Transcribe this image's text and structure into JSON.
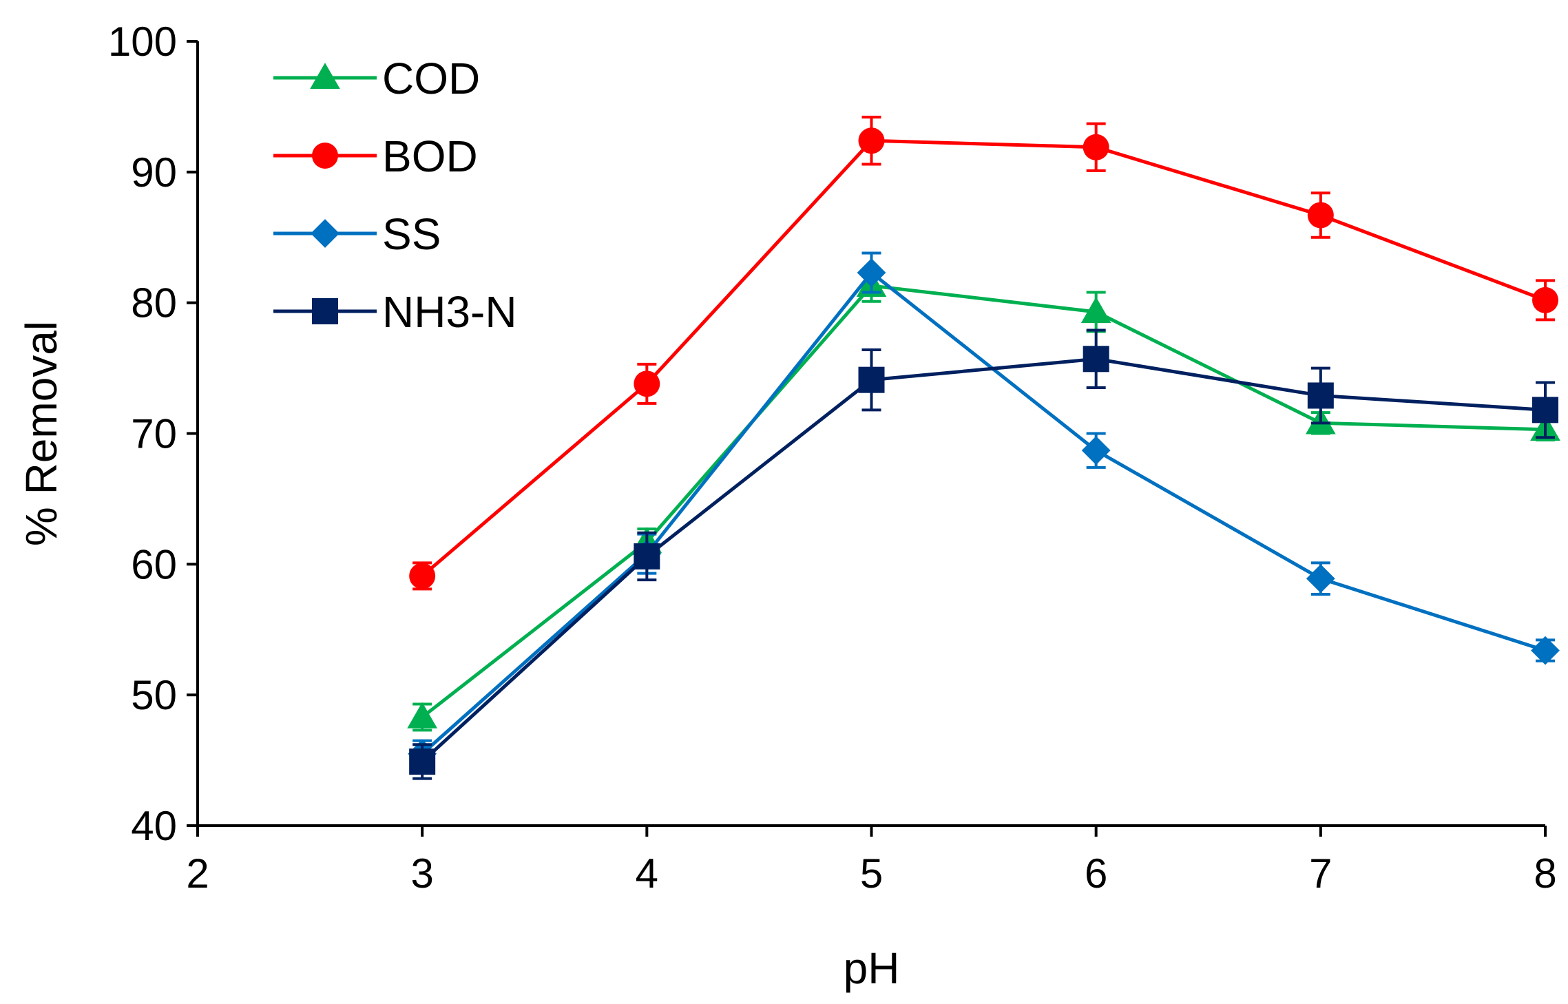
{
  "chart_data": {
    "type": "line",
    "title": "",
    "xlabel": "pH",
    "ylabel": "% Removal",
    "xlim": [
      2,
      8
    ],
    "ylim": [
      40,
      100
    ],
    "x_ticks": [
      "2",
      "3",
      "4",
      "5",
      "6",
      "7",
      "8"
    ],
    "y_ticks": [
      "40",
      "50",
      "60",
      "70",
      "80",
      "90",
      "100"
    ],
    "grid": false,
    "legend_position": "top-left",
    "x": [
      3,
      4,
      5,
      6,
      7,
      8
    ],
    "series": [
      {
        "name": "COD",
        "color": "#00b050",
        "marker": "triangle",
        "values": [
          48.3,
          61.7,
          81.3,
          79.3,
          70.8,
          70.3
        ],
        "errors": [
          1.0,
          1.0,
          1.2,
          1.5,
          0.8,
          0.8
        ]
      },
      {
        "name": "BOD",
        "color": "#ff0000",
        "marker": "circle",
        "values": [
          59.1,
          73.8,
          92.4,
          91.9,
          86.7,
          80.2
        ],
        "errors": [
          1.0,
          1.5,
          1.8,
          1.8,
          1.7,
          1.5
        ]
      },
      {
        "name": "SS",
        "color": "#0070c0",
        "marker": "diamond",
        "values": [
          45.5,
          60.8,
          82.3,
          68.7,
          58.9,
          53.4
        ],
        "errors": [
          1.0,
          1.5,
          1.5,
          1.3,
          1.2,
          0.8
        ]
      },
      {
        "name": "NH3-N",
        "color": "#002060",
        "marker": "square",
        "values": [
          44.9,
          60.6,
          74.1,
          75.7,
          72.9,
          71.8
        ],
        "errors": [
          1.3,
          1.8,
          2.3,
          2.2,
          2.1,
          2.1
        ]
      }
    ]
  }
}
